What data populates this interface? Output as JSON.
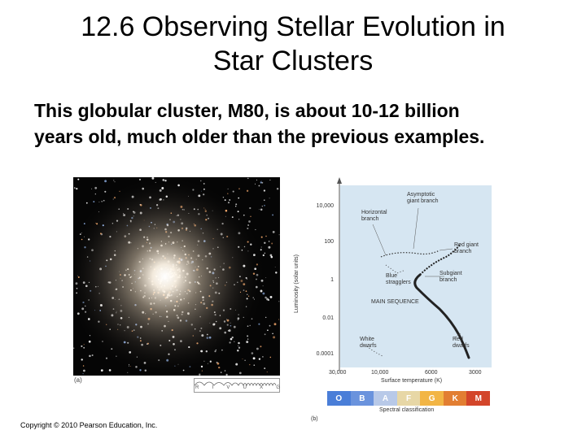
{
  "slide": {
    "title_line1": "12.6 Observing Stellar Evolution in",
    "title_line2": "Star Clusters",
    "body_line1": "This globular cluster, M80, is about 10-12 billion",
    "body_line2": "years old, much older than the previous examples.",
    "copyright": "Copyright © 2010 Pearson Education, Inc."
  },
  "figure_a": {
    "label": "(a)",
    "filter_letters": [
      "R",
      "I",
      "V",
      "U",
      "X",
      "G"
    ]
  },
  "figure_b": {
    "label": "(b)",
    "y_axis_title": "Luminosity (solar units)",
    "y_ticks": [
      "10,000",
      "100",
      "1",
      "0.01",
      "0.0001"
    ],
    "x_axis_title": "Surface temperature (K)",
    "x_ticks": [
      "30,000",
      "10,000",
      "6000",
      "3000"
    ],
    "spectral_title": "Spectral classification",
    "spectral_classes": [
      "O",
      "B",
      "A",
      "F",
      "G",
      "K",
      "M"
    ],
    "spectral_colors": [
      "#4a7ed8",
      "#6a93dd",
      "#b8c9e8",
      "#e7d7a6",
      "#f2b545",
      "#e27e32",
      "#d3452a"
    ],
    "annotations": {
      "agb_1": "Asymptotic",
      "agb_2": "giant branch",
      "hb_1": "Horizontal",
      "hb_2": "branch",
      "rgb_1": "Red giant",
      "rgb_2": "branch",
      "bs_1": "Blue",
      "bs_2": "stragglers",
      "sgb_1": "Subgiant",
      "sgb_2": "branch",
      "ms": "MAIN SEQUENCE",
      "wd_1": "White",
      "wd_2": "dwarfs",
      "rd_1": "Red",
      "rd_2": "dwarfs"
    }
  }
}
